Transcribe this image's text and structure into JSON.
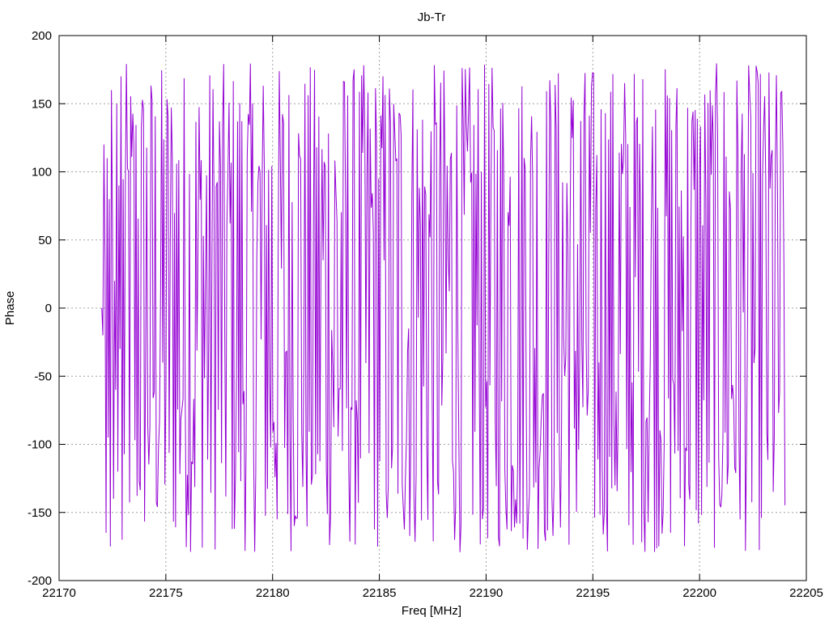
{
  "chart_data": {
    "type": "line",
    "title": "Jb-Tr",
    "xlabel": "Freq [MHz]",
    "ylabel": "Phase",
    "xlim": [
      22170,
      22205
    ],
    "ylim": [
      -200,
      200
    ],
    "xticks": [
      22170,
      22175,
      22180,
      22185,
      22190,
      22195,
      22200,
      22205
    ],
    "yticks": [
      -200,
      -150,
      -100,
      -50,
      0,
      50,
      100,
      150,
      200
    ],
    "x_tick_labels": [
      "22170",
      "22175",
      "22180",
      "22185",
      "22190",
      "22195",
      "22200",
      "22205"
    ],
    "y_tick_labels": [
      "-200",
      "-150",
      "-100",
      "-50",
      "0",
      "50",
      "100",
      "150",
      "200"
    ],
    "grid": true,
    "series": [
      {
        "color": "#9400d3",
        "x_start": 22172,
        "x_end": 22204,
        "points": 640,
        "y_range": [
          -180,
          180
        ],
        "description_values_sample": [
          0,
          -20,
          120,
          35,
          -165,
          110,
          -95,
          80,
          -175,
          160,
          60,
          -140,
          20,
          -60,
          150,
          -120,
          90,
          -30,
          170,
          -170
        ]
      }
    ]
  }
}
